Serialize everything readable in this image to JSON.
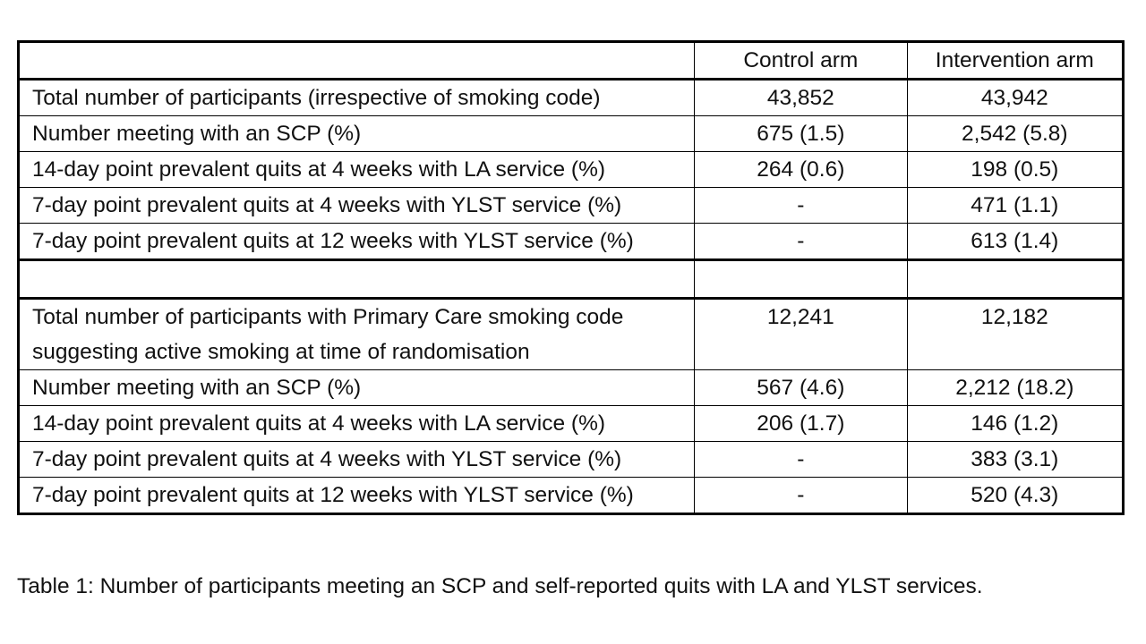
{
  "table": {
    "headers": [
      "",
      "Control arm",
      "Intervention arm"
    ],
    "section1": [
      {
        "label": "Total number of participants (irrespective of smoking code)",
        "control": "43,852",
        "intervention": "43,942"
      },
      {
        "label": "Number meeting with an SCP (%)",
        "control": "675 (1.5)",
        "intervention": "2,542 (5.8)"
      },
      {
        "label": "14-day point prevalent quits at 4 weeks with LA service (%)",
        "control": "264 (0.6)",
        "intervention": "198 (0.5)"
      },
      {
        "label": "7-day point prevalent quits at 4 weeks with YLST service (%)",
        "control": "-",
        "intervention": "471 (1.1)"
      },
      {
        "label": "7-day point prevalent quits at 12 weeks with YLST service (%)",
        "control": "-",
        "intervention": "613 (1.4)"
      }
    ],
    "section2": [
      {
        "label": "Total number of participants with Primary Care smoking code suggesting active smoking at time of randomisation",
        "control": "12,241",
        "intervention": "12,182"
      },
      {
        "label": "Number meeting with an SCP (%)",
        "control": "567 (4.6)",
        "intervention": "2,212 (18.2)"
      },
      {
        "label": "14-day point prevalent quits at 4 weeks with LA service (%)",
        "control": "206 (1.7)",
        "intervention": "146 (1.2)"
      },
      {
        "label": "7-day point prevalent quits at 4 weeks with YLST service (%)",
        "control": "-",
        "intervention": "383 (3.1)"
      },
      {
        "label": "7-day point prevalent quits at 12 weeks with YLST service (%)",
        "control": "-",
        "intervention": "520 (4.3)"
      }
    ]
  },
  "caption": "Table 1: Number of participants meeting an SCP and self-reported quits with LA and YLST services."
}
